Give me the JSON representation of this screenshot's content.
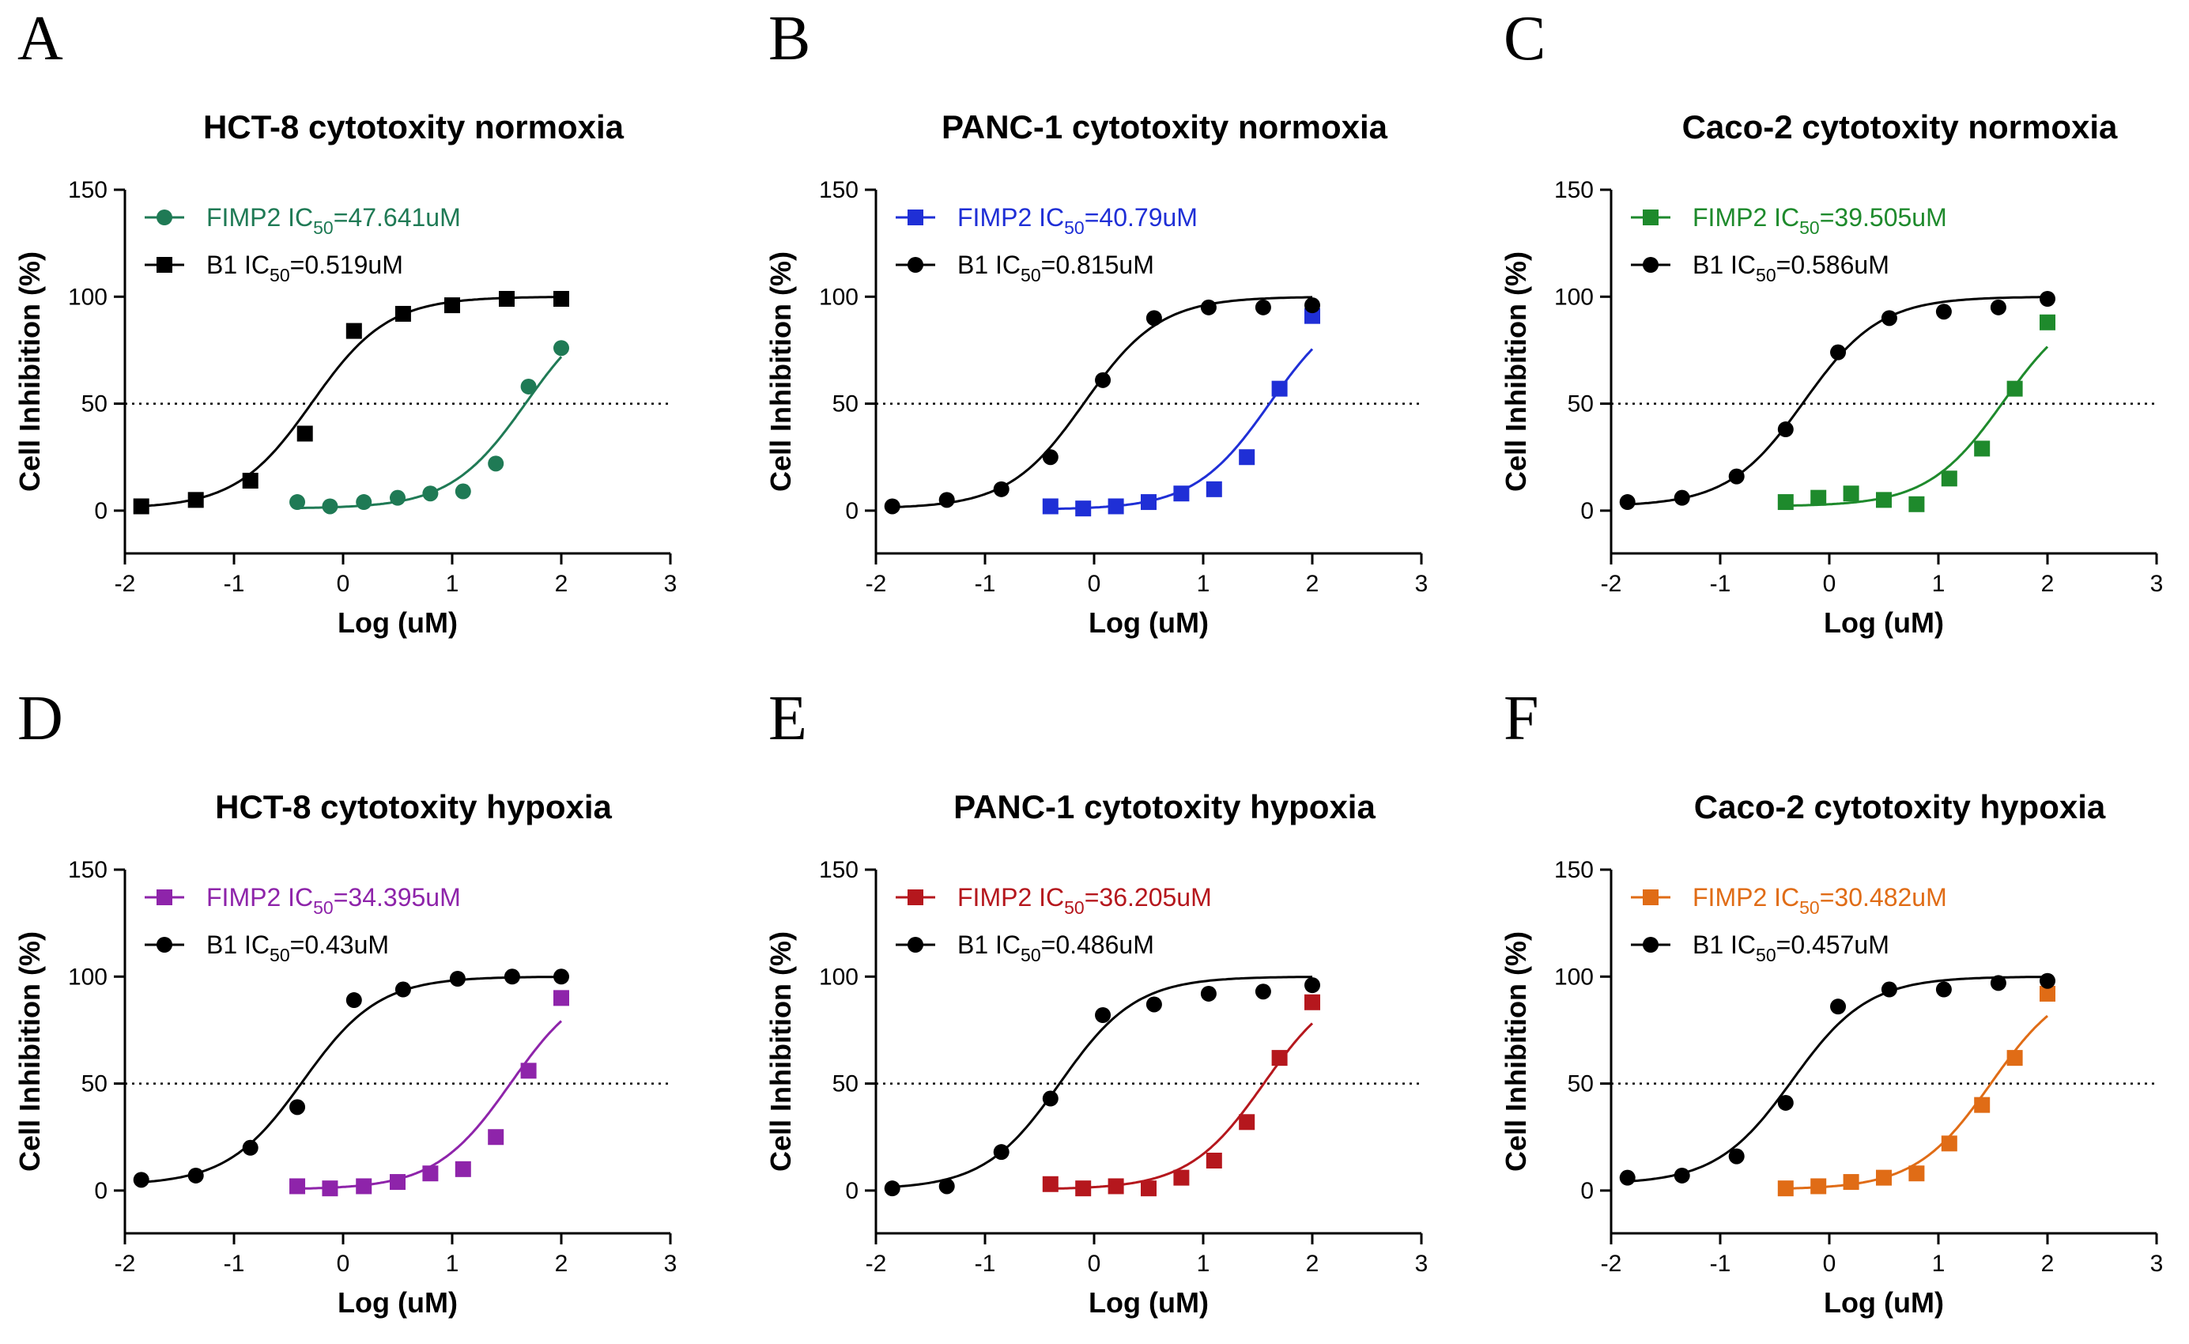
{
  "figure": {
    "x_label": "Log (uM)",
    "y_label": "Cell Inhibition (%)"
  },
  "chart_data": [
    {
      "panel": "A",
      "type": "scatter",
      "title": "HCT-8 cytotoxity normoxia",
      "xlabel": "Log (uM)",
      "ylabel": "Cell Inhibition (%)",
      "xlim": [
        -2,
        3
      ],
      "ylim": [
        -20,
        150
      ],
      "xticks": [
        -2,
        -1,
        0,
        1,
        2,
        3
      ],
      "yticks": [
        0,
        50,
        100,
        150
      ],
      "reference_line": 50,
      "series": [
        {
          "name": "FIMP2",
          "legend_prefix": "FIMP2 IC",
          "legend_sub": "50",
          "legend_suffix": "=47.641uM",
          "marker": "circle",
          "color": "#1f7a55",
          "ic50_log": 1.678,
          "x": [
            -0.42,
            -0.12,
            0.19,
            0.5,
            0.8,
            1.1,
            1.4,
            1.7,
            2.0
          ],
          "y": [
            4,
            2,
            4,
            6,
            8,
            9,
            22,
            58,
            76
          ]
        },
        {
          "name": "B1",
          "legend_prefix": "B1 IC",
          "legend_sub": "50",
          "legend_suffix": "=0.519uM",
          "marker": "square",
          "color": "#000000",
          "ic50_log": -0.285,
          "x": [
            -1.85,
            -1.35,
            -0.85,
            -0.35,
            0.1,
            0.55,
            1.0,
            1.5,
            2.0
          ],
          "y": [
            2,
            5,
            14,
            36,
            84,
            92,
            96,
            99,
            99
          ]
        }
      ]
    },
    {
      "panel": "B",
      "type": "scatter",
      "title": "PANC-1 cytotoxity normoxia",
      "xlabel": "Log (uM)",
      "ylabel": "Cell Inhibition (%)",
      "xlim": [
        -2,
        3
      ],
      "ylim": [
        -20,
        150
      ],
      "xticks": [
        -2,
        -1,
        0,
        1,
        2,
        3
      ],
      "yticks": [
        0,
        50,
        100,
        150
      ],
      "reference_line": 50,
      "series": [
        {
          "name": "FIMP2",
          "legend_prefix": "FIMP2 IC",
          "legend_sub": "50",
          "legend_suffix": "=40.79uM",
          "marker": "square",
          "color": "#1f2fd6",
          "ic50_log": 1.611,
          "x": [
            -0.4,
            -0.1,
            0.2,
            0.5,
            0.8,
            1.1,
            1.4,
            1.7,
            2.0
          ],
          "y": [
            2,
            1,
            2,
            4,
            8,
            10,
            25,
            57,
            91
          ]
        },
        {
          "name": "B1",
          "legend_prefix": "B1 IC",
          "legend_sub": "50",
          "legend_suffix": "=0.815uM",
          "marker": "circle",
          "color": "#000000",
          "ic50_log": -0.089,
          "x": [
            -1.85,
            -1.35,
            -0.85,
            -0.4,
            0.08,
            0.55,
            1.05,
            1.55,
            2.0
          ],
          "y": [
            2,
            5,
            10,
            25,
            61,
            90,
            95,
            95,
            96
          ]
        }
      ]
    },
    {
      "panel": "C",
      "type": "scatter",
      "title": "Caco-2 cytotoxity normoxia",
      "xlabel": "Log (uM)",
      "ylabel": "Cell Inhibition (%)",
      "xlim": [
        -2,
        3
      ],
      "ylim": [
        -20,
        150
      ],
      "xticks": [
        -2,
        -1,
        0,
        1,
        2,
        3
      ],
      "yticks": [
        0,
        50,
        100,
        150
      ],
      "reference_line": 50,
      "series": [
        {
          "name": "FIMP2",
          "legend_prefix": "FIMP2 IC",
          "legend_sub": "50",
          "legend_suffix": "=39.505uM",
          "marker": "square",
          "color": "#1e8a2c",
          "ic50_log": 1.597,
          "x": [
            -0.4,
            -0.1,
            0.2,
            0.5,
            0.8,
            1.1,
            1.4,
            1.7,
            2.0
          ],
          "y": [
            4,
            6,
            8,
            5,
            3,
            15,
            29,
            57,
            88
          ]
        },
        {
          "name": "B1",
          "legend_prefix": "B1 IC",
          "legend_sub": "50",
          "legend_suffix": "=0.586uM",
          "marker": "circle",
          "color": "#000000",
          "ic50_log": -0.232,
          "x": [
            -1.85,
            -1.35,
            -0.85,
            -0.4,
            0.08,
            0.55,
            1.05,
            1.55,
            2.0
          ],
          "y": [
            4,
            6,
            16,
            38,
            74,
            90,
            93,
            95,
            99
          ]
        }
      ]
    },
    {
      "panel": "D",
      "type": "scatter",
      "title": "HCT-8 cytotoxity hypoxia",
      "xlabel": "Log (uM)",
      "ylabel": "Cell Inhibition (%)",
      "xlim": [
        -2,
        3
      ],
      "ylim": [
        -20,
        150
      ],
      "xticks": [
        -2,
        -1,
        0,
        1,
        2,
        3
      ],
      "yticks": [
        0,
        50,
        100,
        150
      ],
      "reference_line": 50,
      "series": [
        {
          "name": "FIMP2",
          "legend_prefix": "FIMP2 IC",
          "legend_sub": "50",
          "legend_suffix": "=34.395uM",
          "marker": "square",
          "color": "#8e24aa",
          "ic50_log": 1.537,
          "x": [
            -0.42,
            -0.12,
            0.19,
            0.5,
            0.8,
            1.1,
            1.4,
            1.7,
            2.0
          ],
          "y": [
            2,
            1,
            2,
            4,
            8,
            10,
            25,
            56,
            90
          ]
        },
        {
          "name": "B1",
          "legend_prefix": "B1 IC",
          "legend_sub": "50",
          "legend_suffix": "=0.43uM",
          "marker": "circle",
          "color": "#000000",
          "ic50_log": -0.367,
          "x": [
            -1.85,
            -1.35,
            -0.85,
            -0.42,
            0.1,
            0.55,
            1.05,
            1.55,
            2.0
          ],
          "y": [
            5,
            7,
            20,
            39,
            89,
            94,
            99,
            100,
            100
          ]
        }
      ]
    },
    {
      "panel": "E",
      "type": "scatter",
      "title": "PANC-1 cytotoxity hypoxia",
      "xlabel": "Log (uM)",
      "ylabel": "Cell Inhibition (%)",
      "xlim": [
        -2,
        3
      ],
      "ylim": [
        -20,
        150
      ],
      "xticks": [
        -2,
        -1,
        0,
        1,
        2,
        3
      ],
      "yticks": [
        0,
        50,
        100,
        150
      ],
      "reference_line": 50,
      "series": [
        {
          "name": "FIMP2",
          "legend_prefix": "FIMP2 IC",
          "legend_sub": "50",
          "legend_suffix": "=36.205uM",
          "marker": "square",
          "color": "#b5171d",
          "ic50_log": 1.559,
          "x": [
            -0.4,
            -0.1,
            0.2,
            0.5,
            0.8,
            1.1,
            1.4,
            1.7,
            2.0
          ],
          "y": [
            3,
            1,
            2,
            1,
            6,
            14,
            32,
            62,
            88
          ]
        },
        {
          "name": "B1",
          "legend_prefix": "B1 IC",
          "legend_sub": "50",
          "legend_suffix": "=0.486uM",
          "marker": "circle",
          "color": "#000000",
          "ic50_log": -0.313,
          "x": [
            -1.85,
            -1.35,
            -0.85,
            -0.4,
            0.08,
            0.55,
            1.05,
            1.55,
            2.0
          ],
          "y": [
            1,
            2,
            18,
            43,
            82,
            87,
            92,
            93,
            96
          ]
        }
      ]
    },
    {
      "panel": "F",
      "type": "scatter",
      "title": "Caco-2 cytotoxity hypoxia",
      "xlabel": "Log (uM)",
      "ylabel": "Cell Inhibition (%)",
      "xlim": [
        -2,
        3
      ],
      "ylim": [
        -20,
        150
      ],
      "xticks": [
        -2,
        -1,
        0,
        1,
        2,
        3
      ],
      "yticks": [
        0,
        50,
        100,
        150
      ],
      "reference_line": 50,
      "series": [
        {
          "name": "FIMP2",
          "legend_prefix": "FIMP2 IC",
          "legend_sub": "50",
          "legend_suffix": "=30.482uM",
          "marker": "square",
          "color": "#e06c16",
          "ic50_log": 1.484,
          "x": [
            -0.4,
            -0.1,
            0.2,
            0.5,
            0.8,
            1.1,
            1.4,
            1.7,
            2.0
          ],
          "y": [
            1,
            2,
            4,
            6,
            8,
            22,
            40,
            62,
            92
          ]
        },
        {
          "name": "B1",
          "legend_prefix": "B1 IC",
          "legend_sub": "50",
          "legend_suffix": "=0.457uM",
          "marker": "circle",
          "color": "#000000",
          "ic50_log": -0.34,
          "x": [
            -1.85,
            -1.35,
            -0.85,
            -0.4,
            0.08,
            0.55,
            1.05,
            1.55,
            2.0
          ],
          "y": [
            6,
            7,
            16,
            41,
            86,
            94,
            94,
            97,
            98
          ]
        }
      ]
    }
  ]
}
